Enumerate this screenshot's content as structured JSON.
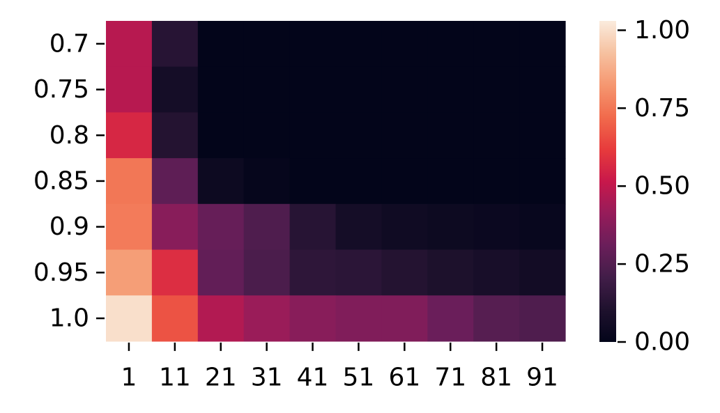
{
  "chart_data": {
    "type": "heatmap",
    "title": "",
    "xlabel": "",
    "ylabel": "",
    "x_categories": [
      "1",
      "11",
      "21",
      "31",
      "41",
      "51",
      "61",
      "71",
      "81",
      "91"
    ],
    "y_categories": [
      "0.7",
      "0.75",
      "0.8",
      "0.85",
      "0.9",
      "0.95",
      "1.0"
    ],
    "values": [
      [
        0.48,
        0.13,
        0.0,
        0.0,
        0.0,
        0.0,
        0.0,
        0.0,
        0.0,
        0.0
      ],
      [
        0.48,
        0.07,
        0.0,
        0.0,
        0.0,
        0.0,
        0.0,
        0.0,
        0.0,
        0.0
      ],
      [
        0.56,
        0.12,
        0.0,
        0.0,
        0.0,
        0.0,
        0.0,
        0.0,
        0.0,
        0.0
      ],
      [
        0.75,
        0.28,
        0.04,
        0.01,
        0.0,
        0.0,
        0.0,
        0.0,
        0.0,
        0.0
      ],
      [
        0.76,
        0.38,
        0.3,
        0.24,
        0.13,
        0.07,
        0.05,
        0.04,
        0.03,
        0.02
      ],
      [
        0.84,
        0.58,
        0.29,
        0.23,
        0.15,
        0.14,
        0.12,
        0.1,
        0.08,
        0.06
      ],
      [
        1.0,
        0.67,
        0.47,
        0.42,
        0.38,
        0.36,
        0.36,
        0.31,
        0.26,
        0.24
      ]
    ],
    "colorbar": {
      "range": [
        0,
        1.03
      ],
      "ticks": [
        0.0,
        0.25,
        0.5,
        0.75,
        1.0
      ],
      "tick_labels": [
        "0.00",
        "0.25",
        "0.50",
        "0.75",
        "1.00"
      ],
      "colormap": "rocket"
    }
  }
}
